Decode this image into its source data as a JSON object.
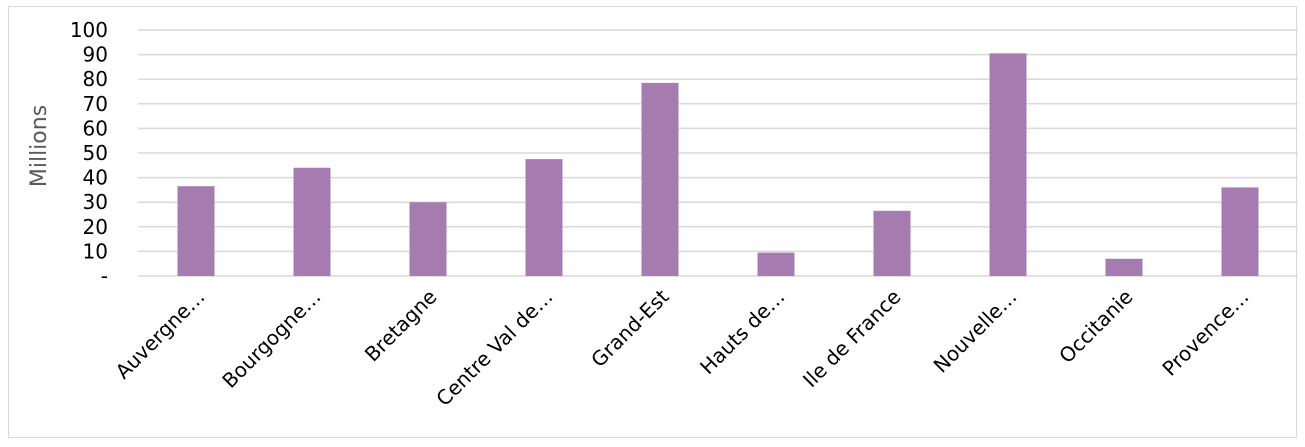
{
  "chart_data": {
    "type": "bar",
    "title": "",
    "xlabel": "",
    "ylabel": "Millions",
    "ylim": [
      0,
      100
    ],
    "yticks": [
      0,
      10,
      20,
      30,
      40,
      50,
      60,
      70,
      80,
      90,
      100
    ],
    "ytick_labels": [
      "-",
      "10",
      "20",
      "30",
      "40",
      "50",
      "60",
      "70",
      "80",
      "90",
      "100"
    ],
    "grid": true,
    "legend": "none",
    "bar_color": "#a67bb0",
    "grid_color": "#d9d9d9",
    "categories": [
      "Auvergne…",
      "Bourgogne…",
      "Bretagne",
      "Centre Val de…",
      "Grand-Est",
      "Hauts de…",
      "Ile de France",
      "Nouvelle…",
      "Occitanie",
      "Provence…"
    ],
    "values": [
      36.5,
      44,
      30,
      47.5,
      78.5,
      9.5,
      26.5,
      90.5,
      7,
      36
    ]
  }
}
